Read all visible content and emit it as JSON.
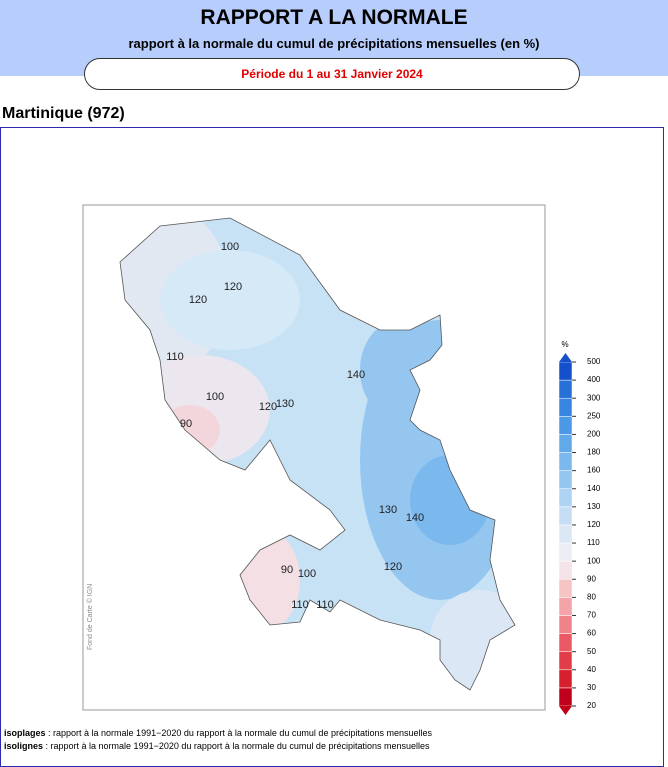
{
  "header": {
    "title": "RAPPORT A LA NORMALE",
    "subtitle": "rapport à la normale du cumul de précipitations mensuelles (en %)",
    "period": "Période du 1 au 31 Janvier 2024"
  },
  "region": "Martinique (972)",
  "map": {
    "credit": "Fond de Carte © IGN",
    "contour_labels": [
      100,
      120,
      120,
      110,
      100,
      90,
      120,
      130,
      140,
      130,
      140,
      120,
      90,
      100,
      110,
      110
    ]
  },
  "legend": {
    "unit": "%",
    "ticks": [
      20,
      30,
      40,
      50,
      60,
      70,
      80,
      90,
      100,
      110,
      120,
      130,
      140,
      160,
      180,
      200,
      250,
      300,
      400,
      500
    ],
    "colors": [
      "#c0001a",
      "#d6202e",
      "#e23c48",
      "#ea5a64",
      "#f0838a",
      "#f4a3a8",
      "#f7c4c6",
      "#f4e4ea",
      "#eceef5",
      "#dbe7f5",
      "#c6def4",
      "#aed3f3",
      "#95c6f0",
      "#7bb8ee",
      "#62a9ea",
      "#4b98e6",
      "#3785e0",
      "#2670d8",
      "#1450cc"
    ]
  },
  "footer": {
    "notes": [
      {
        "label": "isoplages",
        "text": " : rapport à la normale 1991−2020 du rapport à la normale du cumul de précipitations mensuelles"
      },
      {
        "label": "isolignes",
        "text": " : rapport à la normale 1991−2020 du rapport à la normale du cumul de précipitations mensuelles"
      }
    ]
  }
}
